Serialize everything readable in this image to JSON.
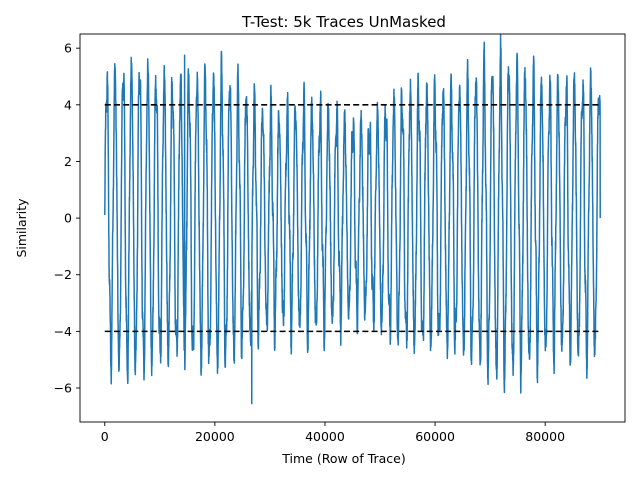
{
  "chart_data": {
    "type": "line",
    "title": "T-Test: 5k Traces UnMasked",
    "xlabel": "Time (Row of Trace)",
    "ylabel": "Similarity",
    "xlim": [
      -4500,
      94500
    ],
    "ylim": [
      -7.2,
      6.5
    ],
    "xticks": [
      0,
      20000,
      40000,
      60000,
      80000
    ],
    "xtick_labels": [
      "0",
      "20000",
      "40000",
      "60000",
      "80000"
    ],
    "yticks": [
      -6,
      -4,
      -2,
      0,
      2,
      4,
      6
    ],
    "ytick_labels": [
      "−6",
      "−4",
      "−2",
      "0",
      "2",
      "4",
      "6"
    ],
    "grid": false,
    "series": [
      {
        "color": "#1f77b4",
        "style": "solid",
        "description": "dense oscillating t-statistic trace over ~90000 samples",
        "x_range": [
          0,
          90000
        ],
        "approx_max": 5.75,
        "approx_max_x": 14500,
        "approx_min": -6.55,
        "approx_min_x": 26700
      }
    ],
    "thresholds": [
      {
        "y": 4.0,
        "x": [
          0,
          90000
        ],
        "color": "#000000",
        "style": "dashed"
      },
      {
        "y": -4.0,
        "x": [
          0,
          90000
        ],
        "color": "#000000",
        "style": "dashed"
      }
    ]
  }
}
